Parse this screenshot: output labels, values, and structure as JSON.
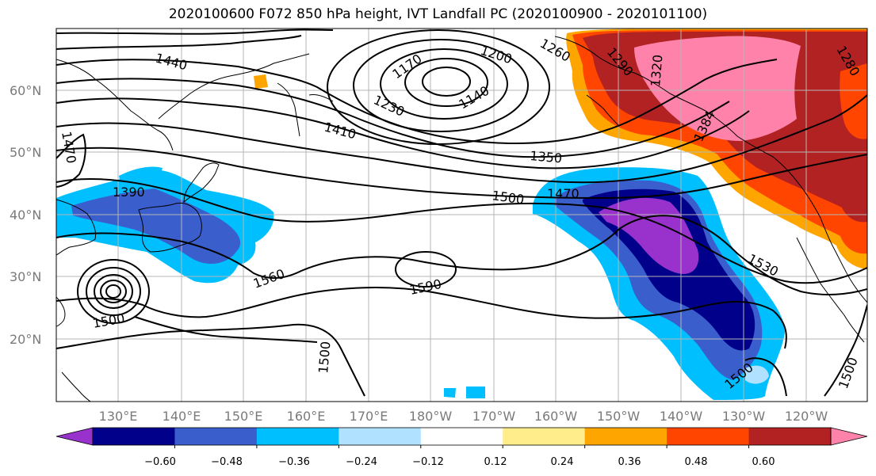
{
  "title": "2020100600 F072 850 hPa height, IVT Landfall PC (2020100900 - 2020101100)",
  "lat_labels": [
    "60°N",
    "50°N",
    "40°N",
    "30°N",
    "20°N"
  ],
  "lon_labels": [
    "130°E",
    "140°E",
    "150°E",
    "160°E",
    "170°E",
    "180°W",
    "170°W",
    "160°W",
    "150°W",
    "140°W",
    "130°W",
    "120°W"
  ],
  "contour_labels": [
    "1440",
    "1470",
    "1390",
    "1500",
    "1560",
    "1590",
    "1500",
    "1230",
    "1170",
    "1200",
    "1260",
    "1140",
    "1290",
    "1320",
    "1280",
    "1410",
    "1350",
    "1500",
    "1470",
    "1530",
    "1500",
    "1500",
    "1384"
  ],
  "colorbar": {
    "colors": [
      "#9932cc",
      "#00008b",
      "#3a5fcd",
      "#00bfff",
      "#b0e2ff",
      "#ffffff",
      "#ffec8b",
      "#ffa500",
      "#ff4500",
      "#b22222",
      "#ff82ab"
    ],
    "ticks": [
      "−0.60",
      "−0.48",
      "−0.36",
      "−0.24",
      "−0.12",
      "0.12",
      "0.24",
      "0.36",
      "0.48",
      "0.60"
    ]
  }
}
